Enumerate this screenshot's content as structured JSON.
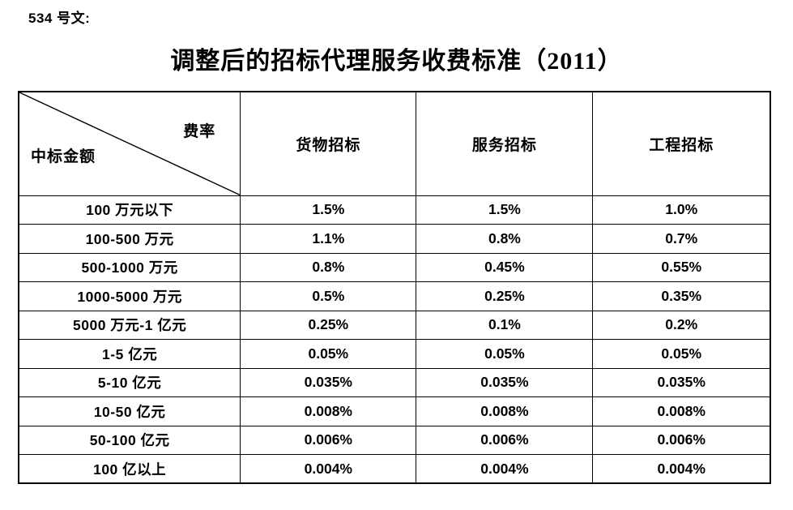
{
  "doc": {
    "ref_label": "534 号文:",
    "title": "调整后的招标代理服务收费标准（2011）"
  },
  "table": {
    "corner": {
      "top_right_label": "费率",
      "bottom_left_label": "中标金额"
    },
    "columns": [
      "货物招标",
      "服务招标",
      "工程招标"
    ],
    "rows": [
      {
        "label": "100 万元以下",
        "values": [
          "1.5%",
          "1.5%",
          "1.0%"
        ]
      },
      {
        "label": "100-500 万元",
        "values": [
          "1.1%",
          "0.8%",
          "0.7%"
        ]
      },
      {
        "label": "500-1000 万元",
        "values": [
          "0.8%",
          "0.45%",
          "0.55%"
        ]
      },
      {
        "label": "1000-5000 万元",
        "values": [
          "0.5%",
          "0.25%",
          "0.35%"
        ]
      },
      {
        "label": "5000 万元-1 亿元",
        "values": [
          "0.25%",
          "0.1%",
          "0.2%"
        ]
      },
      {
        "label": "1-5 亿元",
        "values": [
          "0.05%",
          "0.05%",
          "0.05%"
        ]
      },
      {
        "label": "5-10 亿元",
        "values": [
          "0.035%",
          "0.035%",
          "0.035%"
        ]
      },
      {
        "label": "10-50 亿元",
        "values": [
          "0.008%",
          "0.008%",
          "0.008%"
        ]
      },
      {
        "label": "50-100 亿元",
        "values": [
          "0.006%",
          "0.006%",
          "0.006%"
        ]
      },
      {
        "label": "100 亿以上",
        "values": [
          "0.004%",
          "0.004%",
          "0.004%"
        ]
      }
    ]
  },
  "colors": {
    "text": "#000000",
    "border": "#000000",
    "background": "#ffffff"
  }
}
